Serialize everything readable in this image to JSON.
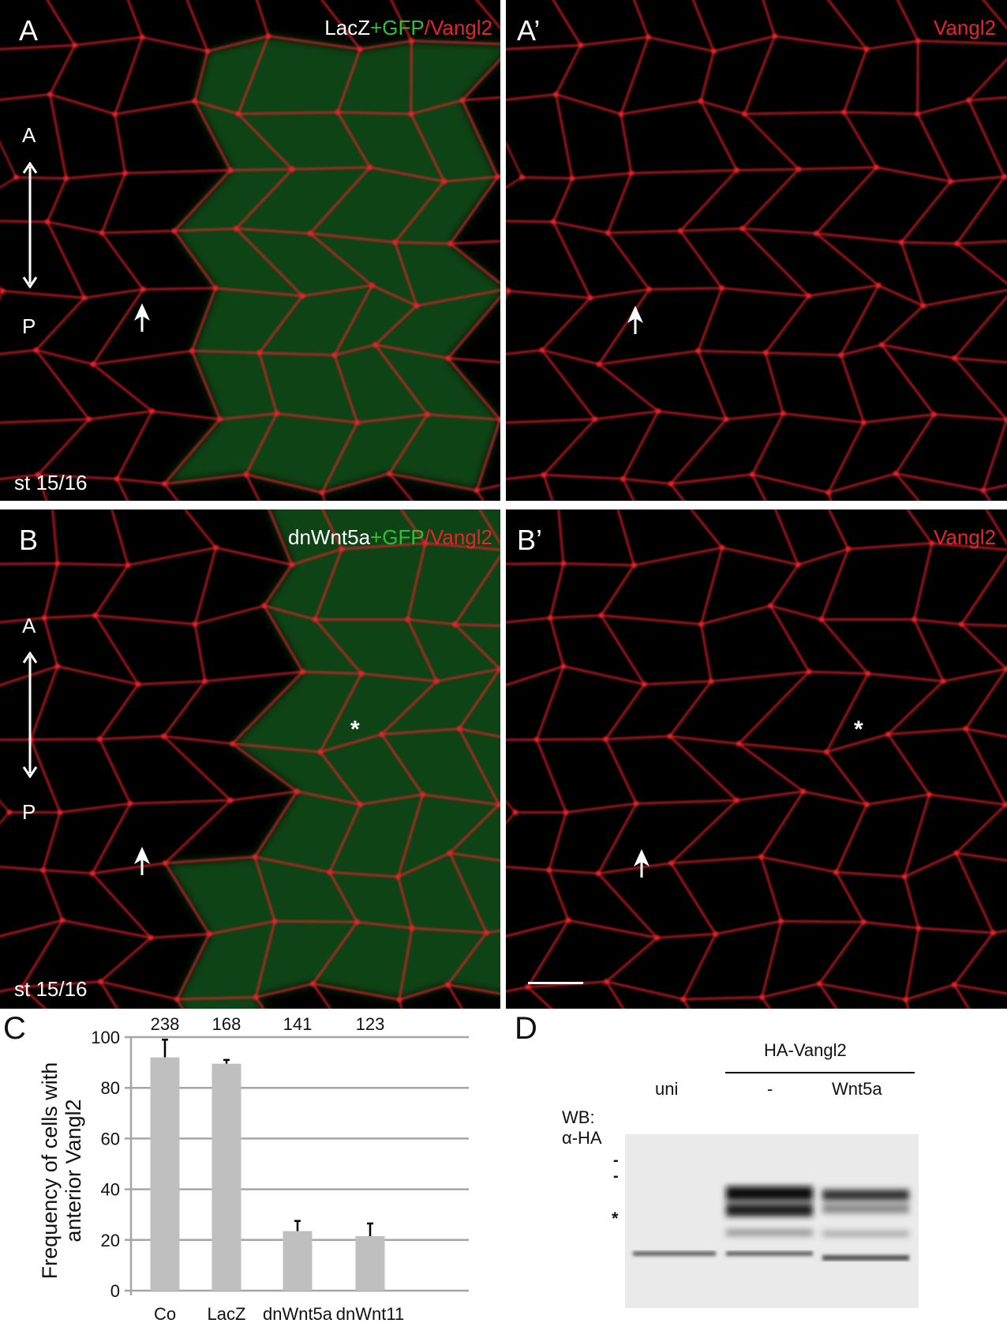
{
  "panels": {
    "A": {
      "label": "A",
      "title": [
        "LacZ",
        "+GFP",
        "/Vangl2"
      ],
      "axis_top": "A",
      "axis_bottom": "P",
      "stage": "st 15/16"
    },
    "A_prime": {
      "label": "A’",
      "title": "Vangl2"
    },
    "B": {
      "label": "B",
      "title": [
        "dnWnt5a",
        "+GFP",
        "/Vangl2"
      ],
      "axis_top": "A",
      "axis_bottom": "P",
      "stage": "st 15/16",
      "asterisk": "*"
    },
    "B_prime": {
      "label": "B’",
      "title": "Vangl2",
      "asterisk": "*"
    },
    "C": {
      "label": "C"
    },
    "D": {
      "label": "D"
    }
  },
  "colors": {
    "membrane": "#e8232b",
    "gfp": "#2fbf3a",
    "bar": "#bfbfbf",
    "grid": "#a6a6a6"
  },
  "chart_data": {
    "type": "bar",
    "categories": [
      "Co",
      "LacZ",
      "dnWnt5a",
      "dnWnt11"
    ],
    "values": [
      92,
      89.5,
      23.5,
      21.5
    ],
    "error_upper": [
      99,
      91,
      27.5,
      26.5
    ],
    "counts": [
      "238",
      "168",
      "141",
      "123"
    ],
    "ylabel": [
      "Frequency of cells with",
      "anterior Vangl2"
    ],
    "ylim": [
      0,
      100
    ],
    "yticks": [
      "0",
      "20",
      "40",
      "60",
      "80",
      "100"
    ],
    "grid": true
  },
  "western_blot": {
    "group_label": "HA-Vangl2",
    "lanes": [
      "uni",
      "-",
      "Wnt5a"
    ],
    "antibody": [
      "WB:",
      "α-HA"
    ],
    "band_markers": [
      "-",
      "-"
    ],
    "nonspecific_marker": "*"
  }
}
